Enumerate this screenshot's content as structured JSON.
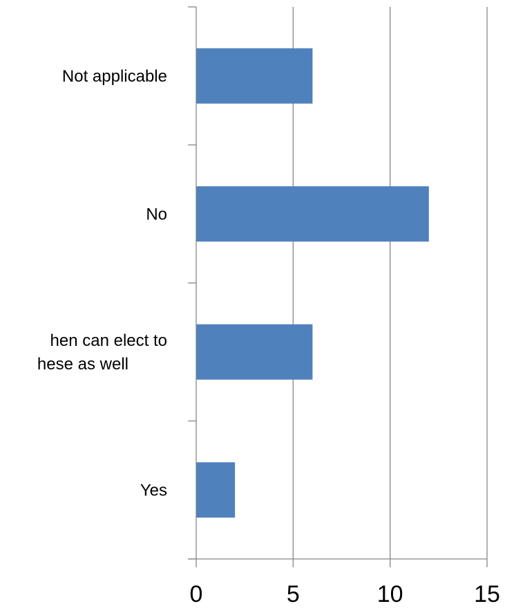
{
  "chart_data": {
    "type": "bar",
    "orientation": "horizontal",
    "title": "",
    "xlabel": "",
    "ylabel": "",
    "categories": [
      [
        "Yes"
      ],
      [
        "hen can elect to",
        "hese as well"
      ],
      [
        "No"
      ],
      [
        "Not applicable"
      ]
    ],
    "values": [
      2,
      6,
      12,
      6
    ],
    "xlim": [
      0,
      15
    ],
    "x_ticks": [
      0,
      5,
      10,
      15
    ],
    "x_tick_labels": [
      "0",
      "5",
      "10",
      "15"
    ],
    "grid": "vertical",
    "legend": "none",
    "colors": {
      "bar": "#4F81BD",
      "grid": "#868686",
      "axis": "#868686"
    }
  }
}
